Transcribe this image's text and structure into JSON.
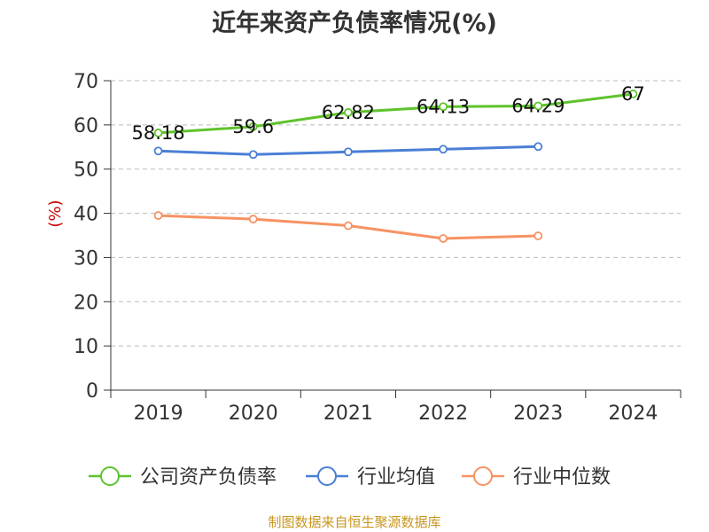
{
  "chart_data": {
    "type": "line",
    "title": "近年来资产负债率情况(%)",
    "ylabel": "(%)",
    "categories": [
      "2019",
      "2020",
      "2021",
      "2022",
      "2023",
      "2024"
    ],
    "ylim": [
      0,
      70
    ],
    "yticks": [
      0,
      10,
      20,
      30,
      40,
      50,
      60,
      70
    ],
    "grid": true,
    "legend_position": "bottom",
    "series": [
      {
        "name": "公司资产负债率",
        "color": "#5ec32c",
        "values": [
          58.18,
          59.6,
          62.82,
          64.13,
          64.29,
          67
        ],
        "labels": [
          "58.18",
          "59.6",
          "62.82",
          "64.13",
          "64.29",
          "67"
        ]
      },
      {
        "name": "行业均值",
        "color": "#4a7fd6",
        "values": [
          54.1,
          53.3,
          53.9,
          54.5,
          55.1,
          null
        ]
      },
      {
        "name": "行业中位数",
        "color": "#f79262",
        "values": [
          39.5,
          38.7,
          37.2,
          34.3,
          34.9,
          null
        ]
      }
    ]
  },
  "footer": "制图数据来自恒生聚源数据库"
}
